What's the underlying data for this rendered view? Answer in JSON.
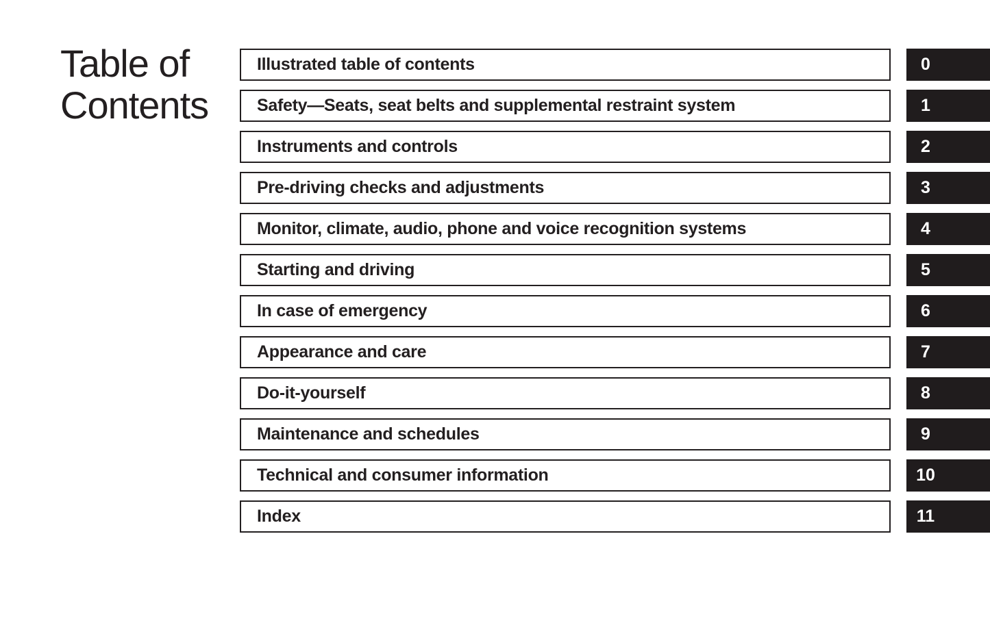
{
  "heading": {
    "line1": "Table of",
    "line2": "Contents"
  },
  "sections": [
    {
      "tab": "0",
      "title": "Illustrated table of contents"
    },
    {
      "tab": "1",
      "title": "Safety—Seats, seat belts and supplemental restraint system"
    },
    {
      "tab": "2",
      "title": "Instruments and controls"
    },
    {
      "tab": "3",
      "title": "Pre-driving checks and adjustments"
    },
    {
      "tab": "4",
      "title": "Monitor, climate, audio, phone and voice recognition systems"
    },
    {
      "tab": "5",
      "title": "Starting and driving"
    },
    {
      "tab": "6",
      "title": "In case of emergency"
    },
    {
      "tab": "7",
      "title": "Appearance and care"
    },
    {
      "tab": "8",
      "title": "Do-it-yourself"
    },
    {
      "tab": "9",
      "title": "Maintenance and schedules"
    },
    {
      "tab": "10",
      "title": "Technical and consumer information"
    },
    {
      "tab": "11",
      "title": "Index"
    }
  ],
  "colors": {
    "ink": "#231f20",
    "tab_background": "#201c1d",
    "paper": "#ffffff",
    "tab_number_text": "#ffffff"
  }
}
